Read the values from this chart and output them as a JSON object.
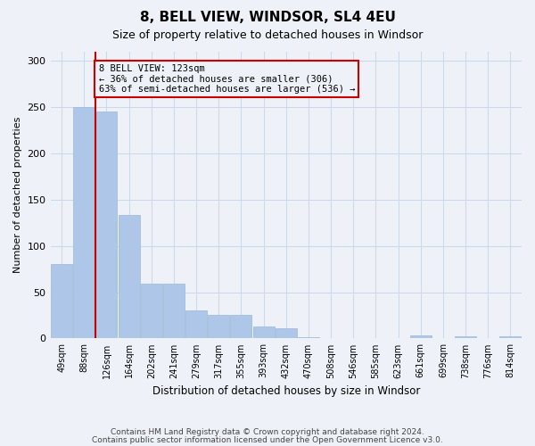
{
  "title": "8, BELL VIEW, WINDSOR, SL4 4EU",
  "subtitle": "Size of property relative to detached houses in Windsor",
  "xlabel": "Distribution of detached houses by size in Windsor",
  "ylabel": "Number of detached properties",
  "bar_values": [
    80,
    250,
    245,
    133,
    59,
    59,
    30,
    25,
    25,
    13,
    11,
    1,
    0,
    0,
    0,
    0,
    3,
    0,
    2,
    0,
    2
  ],
  "categories": [
    "49sqm",
    "88sqm",
    "126sqm",
    "164sqm",
    "202sqm",
    "241sqm",
    "279sqm",
    "317sqm",
    "355sqm",
    "393sqm",
    "432sqm",
    "470sqm",
    "508sqm",
    "546sqm",
    "585sqm",
    "623sqm",
    "661sqm",
    "699sqm",
    "738sqm",
    "776sqm",
    "814sqm"
  ],
  "bar_color": "#aec6e8",
  "bar_edge_color": "#9ab8d8",
  "grid_color": "#cdd8ea",
  "background_color": "#eef2f8",
  "vline_x": 1.5,
  "vline_color": "#cc0000",
  "annotation_text": "8 BELL VIEW: 123sqm\n← 36% of detached houses are smaller (306)\n63% of semi-detached houses are larger (536) →",
  "annotation_box_edge": "#cc0000",
  "ylim": [
    0,
    310
  ],
  "yticks": [
    0,
    50,
    100,
    150,
    200,
    250,
    300
  ],
  "footer_line1": "Contains HM Land Registry data © Crown copyright and database right 2024.",
  "footer_line2": "Contains public sector information licensed under the Open Government Licence v3.0."
}
